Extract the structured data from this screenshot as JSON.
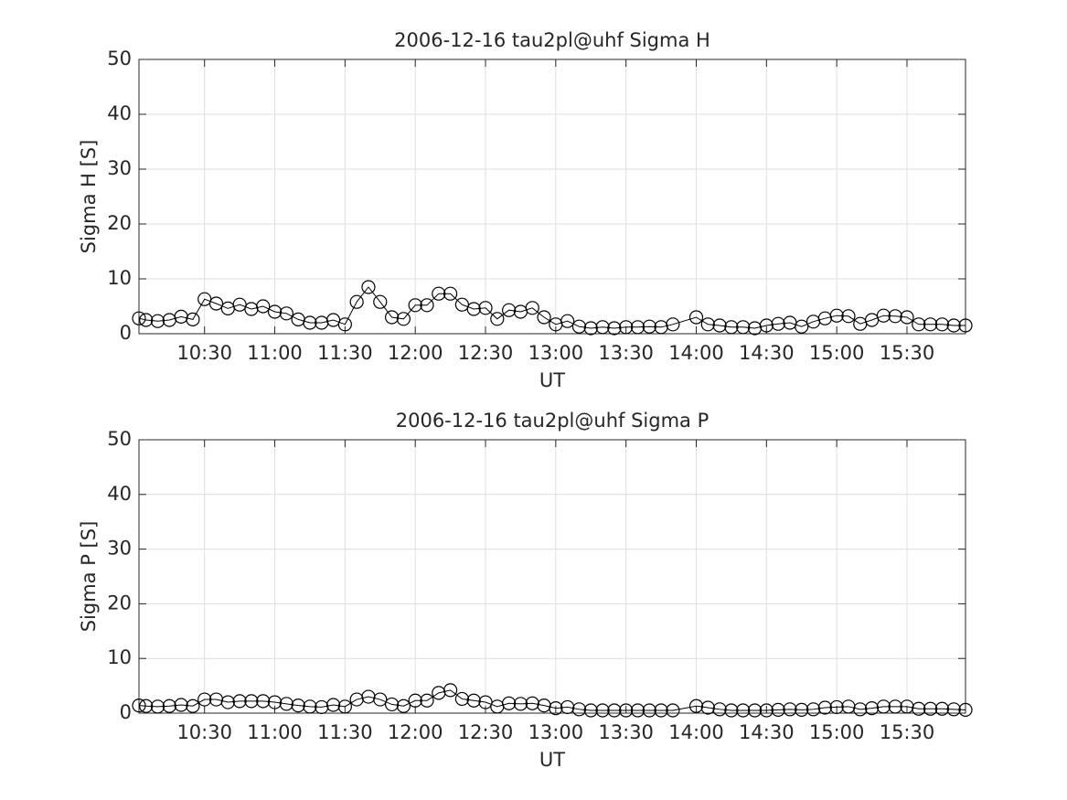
{
  "chart_data": [
    {
      "type": "line",
      "title": "2006-12-16  tau2pl@uhf Sigma H",
      "xlabel": "UT",
      "ylabel": "Sigma H [S]",
      "x": [
        "10:02",
        "10:05",
        "10:10",
        "10:15",
        "10:20",
        "10:25",
        "10:30",
        "10:35",
        "10:40",
        "10:45",
        "10:50",
        "10:55",
        "11:00",
        "11:05",
        "11:10",
        "11:15",
        "11:20",
        "11:25",
        "11:30",
        "11:35",
        "11:40",
        "11:45",
        "11:50",
        "11:55",
        "12:00",
        "12:05",
        "12:10",
        "12:15",
        "12:20",
        "12:25",
        "12:30",
        "12:35",
        "12:40",
        "12:45",
        "12:50",
        "12:55",
        "13:00",
        "13:05",
        "13:10",
        "13:15",
        "13:20",
        "13:25",
        "13:30",
        "13:35",
        "13:40",
        "13:45",
        "13:50",
        "14:00",
        "14:05",
        "14:10",
        "14:15",
        "14:20",
        "14:25",
        "14:30",
        "14:35",
        "14:40",
        "14:45",
        "14:50",
        "14:55",
        "15:00",
        "15:05",
        "15:10",
        "15:15",
        "15:20",
        "15:25",
        "15:30",
        "15:35",
        "15:40",
        "15:45",
        "15:50",
        "15:55"
      ],
      "values": [
        2.8,
        2.5,
        2.3,
        2.5,
        3.1,
        2.6,
        6.3,
        5.5,
        4.6,
        5.3,
        4.5,
        5.0,
        4.0,
        3.7,
        2.6,
        2.0,
        2.0,
        2.5,
        1.7,
        5.8,
        8.5,
        5.8,
        3.0,
        2.7,
        5.2,
        5.2,
        7.3,
        7.3,
        5.3,
        4.5,
        4.7,
        2.7,
        4.3,
        4.0,
        4.7,
        3.0,
        1.7,
        2.3,
        1.3,
        1.0,
        1.2,
        1.0,
        1.2,
        1.2,
        1.3,
        1.2,
        1.7,
        3.0,
        1.7,
        1.5,
        1.2,
        1.2,
        1.0,
        1.5,
        1.8,
        2.0,
        1.3,
        2.2,
        2.8,
        3.3,
        3.2,
        1.8,
        2.5,
        3.3,
        3.2,
        3.0,
        1.7,
        1.7,
        1.7,
        1.5,
        1.5
      ],
      "color": "#000000",
      "marker": "circle",
      "xlim": [
        "10:02",
        "15:55"
      ],
      "xticks": [
        "10:30",
        "11:00",
        "11:30",
        "12:00",
        "12:30",
        "13:00",
        "13:30",
        "14:00",
        "14:30",
        "15:00",
        "15:30"
      ],
      "ylim": [
        0,
        50
      ],
      "yticks": [
        0,
        10,
        20,
        30,
        40,
        50
      ],
      "grid": true
    },
    {
      "type": "line",
      "title": "2006-12-16  tau2pl@uhf Sigma P",
      "xlabel": "UT",
      "ylabel": "Sigma P [S]",
      "x": [
        "10:02",
        "10:05",
        "10:10",
        "10:15",
        "10:20",
        "10:25",
        "10:30",
        "10:35",
        "10:40",
        "10:45",
        "10:50",
        "10:55",
        "11:00",
        "11:05",
        "11:10",
        "11:15",
        "11:20",
        "11:25",
        "11:30",
        "11:35",
        "11:40",
        "11:45",
        "11:50",
        "11:55",
        "12:00",
        "12:05",
        "12:10",
        "12:15",
        "12:20",
        "12:25",
        "12:30",
        "12:35",
        "12:40",
        "12:45",
        "12:50",
        "12:55",
        "13:00",
        "13:05",
        "13:10",
        "13:15",
        "13:20",
        "13:25",
        "13:30",
        "13:35",
        "13:40",
        "13:45",
        "13:50",
        "14:00",
        "14:05",
        "14:10",
        "14:15",
        "14:20",
        "14:25",
        "14:30",
        "14:35",
        "14:40",
        "14:45",
        "14:50",
        "14:55",
        "15:00",
        "15:05",
        "15:10",
        "15:15",
        "15:20",
        "15:25",
        "15:30",
        "15:35",
        "15:40",
        "15:45",
        "15:50",
        "15:55"
      ],
      "values": [
        1.4,
        1.3,
        1.2,
        1.3,
        1.5,
        1.3,
        2.5,
        2.5,
        2.0,
        2.2,
        2.2,
        2.2,
        2.0,
        1.7,
        1.4,
        1.2,
        1.1,
        1.5,
        1.2,
        2.5,
        3.0,
        2.5,
        1.6,
        1.3,
        2.3,
        2.3,
        3.7,
        4.2,
        2.6,
        2.3,
        2.0,
        1.2,
        1.8,
        1.7,
        1.8,
        1.4,
        0.9,
        1.1,
        0.7,
        0.5,
        0.5,
        0.5,
        0.5,
        0.5,
        0.5,
        0.5,
        0.5,
        1.3,
        1.0,
        0.7,
        0.5,
        0.5,
        0.5,
        0.5,
        0.6,
        0.7,
        0.6,
        0.7,
        1.0,
        1.1,
        1.2,
        0.7,
        0.9,
        1.2,
        1.2,
        1.2,
        0.8,
        0.8,
        0.8,
        0.7,
        0.6
      ],
      "color": "#000000",
      "marker": "circle",
      "xlim": [
        "10:02",
        "15:55"
      ],
      "xticks": [
        "10:30",
        "11:00",
        "11:30",
        "12:00",
        "12:30",
        "13:00",
        "13:30",
        "14:00",
        "14:30",
        "15:00",
        "15:30"
      ],
      "ylim": [
        0,
        50
      ],
      "yticks": [
        0,
        10,
        20,
        30,
        40,
        50
      ],
      "grid": true
    }
  ]
}
